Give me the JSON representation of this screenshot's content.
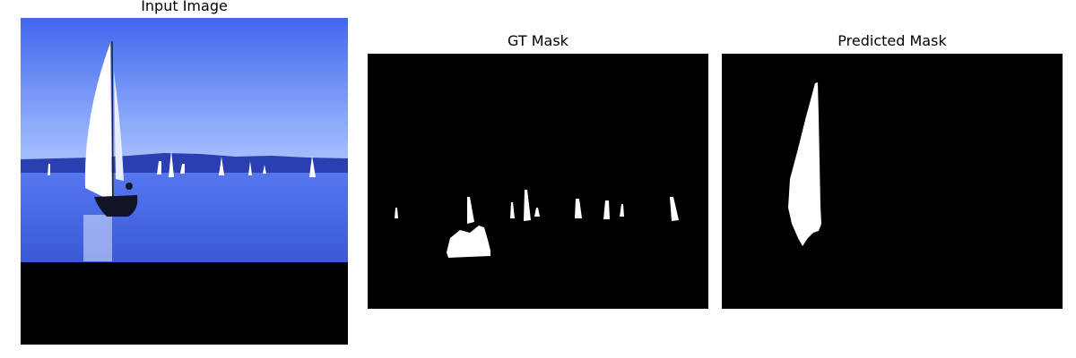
{
  "panels": [
    {
      "title": "Input Image"
    },
    {
      "title": "GT Mask"
    },
    {
      "title": "Predicted Mask"
    }
  ],
  "colors": {
    "mask_background": "#000000",
    "mask_foreground": "#ffffff",
    "sky_top": "#3f63ef",
    "sky_bottom": "#9bb8fb",
    "water": "#4869e4",
    "shore": "#2a3fb0"
  }
}
